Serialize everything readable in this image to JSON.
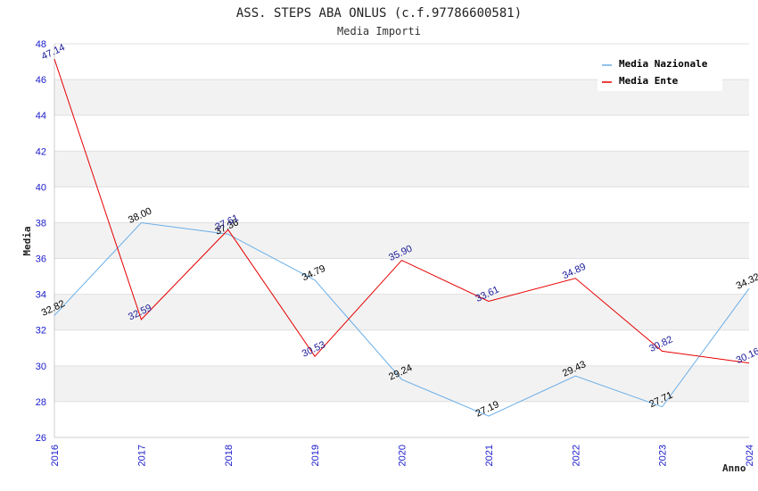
{
  "chart_data": {
    "type": "line",
    "title": "ASS. STEPS ABA ONLUS (c.f.97786600581)",
    "subtitle": "Media Importi",
    "xlabel": "Anno",
    "ylabel": "Media",
    "ylim": [
      26,
      48
    ],
    "yticks": [
      "26",
      "28",
      "30",
      "32",
      "34",
      "36",
      "38",
      "40",
      "42",
      "44",
      "46",
      "48"
    ],
    "categories": [
      "2016",
      "2017",
      "2018",
      "2019",
      "2020",
      "2021",
      "2022",
      "2023",
      "2024"
    ],
    "grid": true,
    "legend_position": "top-right",
    "series": [
      {
        "name": "Media Nazionale",
        "color": "#6aaee8",
        "label_color": "#000000",
        "values": [
          32.82,
          38.0,
          37.36,
          34.79,
          29.24,
          27.19,
          29.43,
          27.71,
          34.32
        ],
        "labels": [
          "32.82",
          "38.00",
          "37.36",
          "34.79",
          "29.24",
          "27.19",
          "29.43",
          "27.71",
          "34.32"
        ]
      },
      {
        "name": "Media Ente",
        "color": "#e60000",
        "label_color": "#1a1a99",
        "values": [
          47.14,
          32.59,
          37.61,
          30.53,
          35.9,
          33.61,
          34.89,
          30.82,
          30.16
        ],
        "labels": [
          "47.14",
          "32.59",
          "37.61",
          "30.53",
          "35.90",
          "33.61",
          "34.89",
          "30.82",
          "30.16"
        ]
      }
    ]
  }
}
